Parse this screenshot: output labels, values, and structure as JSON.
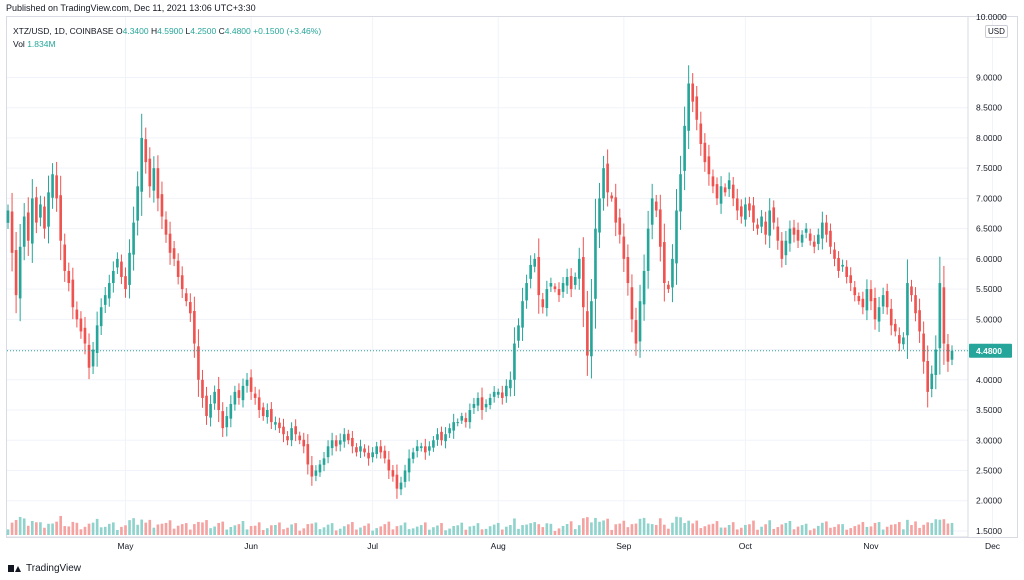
{
  "header": {
    "published": "Published on TradingView.com, Dec 11, 2021 13:06 UTC+3:30"
  },
  "legend": {
    "symbol": "XTZ/USD, 1D, COINBASE",
    "o_label": "O",
    "o": "4.3400",
    "h_label": "H",
    "h": "4.5900",
    "l_label": "L",
    "l": "4.2500",
    "c_label": "C",
    "c": "4.4800",
    "change": "+0.1500 (+3.46%)",
    "vol_label": "Vol",
    "vol": "1.834M"
  },
  "price_axis": {
    "currency": "USD",
    "top_label": "10.0000",
    "current_price": "4.4800"
  },
  "footer": {
    "brand": "TradingView"
  },
  "colors": {
    "up": "#26a69a",
    "down": "#ef5350",
    "vol_up": "#8fd3cc",
    "vol_down": "#f5a3a1",
    "grid": "#f0f3fa",
    "price_line": "#26a69a"
  },
  "chart_data": {
    "type": "candlestick",
    "title": "XTZ/USD, 1D, COINBASE",
    "ylim": [
      1.4,
      10.0
    ],
    "y_ticks": [
      "1.5000",
      "2.0000",
      "2.5000",
      "3.0000",
      "3.5000",
      "4.0000",
      "4.5000",
      "5.0000",
      "5.5000",
      "6.0000",
      "6.5000",
      "7.0000",
      "7.5000",
      "8.0000",
      "8.5000",
      "9.0000"
    ],
    "x_ticks": [
      "May",
      "Jun",
      "Jul",
      "Aug",
      "Sep",
      "Oct",
      "Nov",
      "Dec"
    ],
    "x_tick_day_index": [
      29,
      60,
      90,
      121,
      152,
      182,
      213,
      243
    ],
    "closes": [
      6.8,
      6.1,
      5.4,
      6.2,
      6.7,
      6.3,
      7.0,
      6.6,
      6.9,
      6.5,
      7.1,
      7.4,
      7.0,
      6.3,
      5.8,
      5.6,
      5.2,
      5.0,
      4.8,
      4.6,
      4.2,
      4.5,
      4.9,
      5.2,
      5.4,
      5.6,
      5.8,
      6.0,
      5.7,
      5.5,
      6.1,
      6.6,
      7.2,
      8.0,
      7.6,
      7.2,
      7.5,
      7.0,
      6.7,
      6.4,
      6.1,
      6.0,
      5.7,
      5.5,
      5.3,
      5.1,
      4.6,
      4.0,
      3.7,
      3.4,
      3.6,
      3.8,
      3.5,
      3.2,
      3.4,
      3.6,
      3.8,
      3.7,
      3.9,
      4.0,
      3.8,
      3.7,
      3.5,
      3.4,
      3.5,
      3.3,
      3.3,
      3.2,
      3.1,
      3.0,
      3.2,
      3.1,
      3.0,
      2.9,
      2.6,
      2.4,
      2.5,
      2.6,
      2.7,
      2.9,
      3.0,
      2.9,
      3.0,
      3.1,
      3.0,
      2.9,
      2.8,
      2.9,
      2.8,
      2.7,
      2.8,
      2.9,
      2.8,
      2.7,
      2.5,
      2.4,
      2.2,
      2.3,
      2.5,
      2.7,
      2.8,
      2.9,
      2.9,
      2.8,
      2.9,
      3.0,
      3.1,
      3.0,
      3.1,
      3.2,
      3.3,
      3.3,
      3.4,
      3.3,
      3.5,
      3.6,
      3.7,
      3.5,
      3.6,
      3.7,
      3.8,
      3.8,
      3.7,
      3.9,
      4.0,
      4.6,
      4.9,
      5.3,
      5.6,
      5.9,
      6.0,
      5.4,
      5.2,
      5.5,
      5.6,
      5.5,
      5.4,
      5.6,
      5.7,
      5.5,
      5.7,
      6.0,
      5.2,
      4.4,
      5.3,
      6.5,
      7.0,
      7.5,
      7.1,
      7.0,
      6.6,
      6.4,
      6.0,
      5.6,
      5.0,
      4.6,
      5.3,
      5.8,
      6.5,
      7.0,
      6.8,
      6.2,
      5.6,
      5.5,
      6.0,
      6.8,
      7.4,
      8.2,
      8.9,
      8.6,
      8.3,
      7.9,
      7.6,
      7.4,
      7.2,
      7.0,
      7.2,
      7.1,
      7.3,
      7.0,
      6.8,
      6.7,
      6.9,
      6.8,
      6.6,
      6.5,
      6.7,
      6.4,
      6.8,
      6.6,
      6.3,
      6.0,
      6.3,
      6.5,
      6.4,
      6.3,
      6.4,
      6.5,
      6.3,
      6.2,
      6.4,
      6.6,
      6.4,
      6.2,
      6.0,
      5.8,
      5.9,
      5.7,
      5.6,
      5.4,
      5.3,
      5.2,
      5.5,
      5.3,
      5.0,
      5.2,
      5.4,
      5.2,
      4.9,
      4.8,
      4.6,
      4.7,
      5.6,
      5.4,
      5.1,
      4.8,
      4.3,
      3.8,
      4.1,
      4.5,
      5.6,
      4.6,
      4.3,
      4.48
    ],
    "volume_labels": [
      "Vol"
    ]
  }
}
